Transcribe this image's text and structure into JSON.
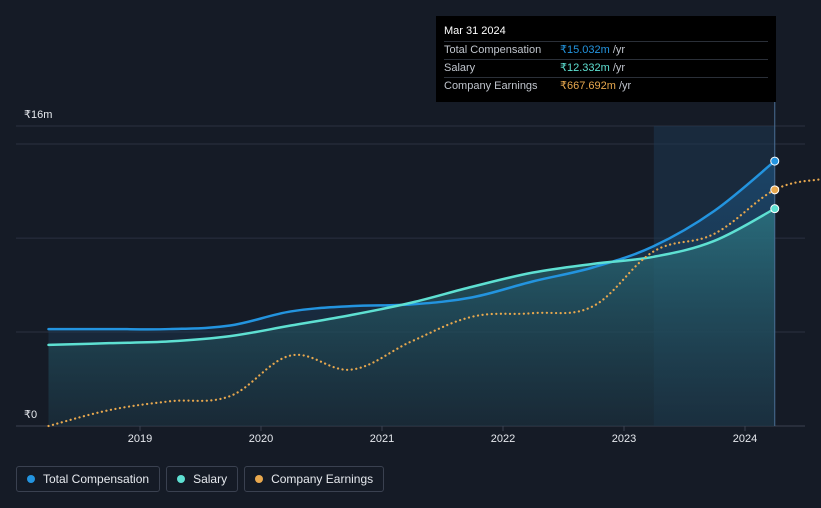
{
  "chart_data": {
    "type": "line",
    "currency_symbol": "₹",
    "x_ticks": [
      "2019",
      "2020",
      "2021",
      "2022",
      "2023",
      "2024"
    ],
    "y_ticks": [
      {
        "value": 0,
        "label": "₹0"
      },
      {
        "value": 16,
        "label": "₹16m"
      }
    ],
    "ylim": [
      0,
      16
    ],
    "grid": true,
    "legend_position": "bottom-left",
    "highlight_region": {
      "from": "2023-04-01",
      "to": "2024-03-31"
    },
    "series": [
      {
        "name": "Total Compensation",
        "color": "#2394df",
        "style": "solid",
        "filled": true,
        "points": [
          [
            "2018-03-31",
            5.5
          ],
          [
            "2018-09-30",
            5.5
          ],
          [
            "2019-03-31",
            5.5
          ],
          [
            "2019-09-30",
            5.7
          ],
          [
            "2020-03-31",
            6.5
          ],
          [
            "2020-09-30",
            6.8
          ],
          [
            "2021-03-31",
            6.9
          ],
          [
            "2021-09-30",
            7.3
          ],
          [
            "2022-03-31",
            8.2
          ],
          [
            "2022-09-30",
            9.0
          ],
          [
            "2023-03-31",
            10.2
          ],
          [
            "2023-09-30",
            12.2
          ],
          [
            "2024-03-31",
            15.03
          ]
        ]
      },
      {
        "name": "Salary",
        "color": "#5ee0d2",
        "style": "solid",
        "filled": true,
        "points": [
          [
            "2018-03-31",
            4.6
          ],
          [
            "2018-09-30",
            4.7
          ],
          [
            "2019-03-31",
            4.8
          ],
          [
            "2019-09-30",
            5.1
          ],
          [
            "2020-03-31",
            5.7
          ],
          [
            "2020-09-30",
            6.3
          ],
          [
            "2021-03-31",
            7.0
          ],
          [
            "2021-09-30",
            7.9
          ],
          [
            "2022-03-31",
            8.7
          ],
          [
            "2022-09-30",
            9.2
          ],
          [
            "2023-03-31",
            9.6
          ],
          [
            "2023-09-30",
            10.5
          ],
          [
            "2024-03-31",
            12.33
          ]
        ]
      },
      {
        "name": "Company Earnings",
        "color": "#e8a84e",
        "style": "dotted",
        "filled": false,
        "points": [
          [
            "2018-03-31",
            0.0
          ],
          [
            "2018-09-30",
            0.9
          ],
          [
            "2019-03-31",
            1.4
          ],
          [
            "2019-09-30",
            1.7
          ],
          [
            "2020-03-31",
            4.0
          ],
          [
            "2020-09-30",
            3.2
          ],
          [
            "2021-03-31",
            4.8
          ],
          [
            "2021-09-30",
            6.2
          ],
          [
            "2022-03-31",
            6.4
          ],
          [
            "2022-09-30",
            6.8
          ],
          [
            "2023-03-31",
            9.9
          ],
          [
            "2023-09-30",
            10.9
          ],
          [
            "2024-03-31",
            13.4
          ],
          [
            "2024-08-15",
            14.0
          ]
        ],
        "label_value": "₹667.692m"
      }
    ]
  },
  "tooltip": {
    "date": "Mar 31 2024",
    "rows": [
      {
        "name": "Total Compensation",
        "value": "₹15.032m",
        "unit": "/yr",
        "color": "#2394df"
      },
      {
        "name": "Salary",
        "value": "₹12.332m",
        "unit": "/yr",
        "color": "#5ee0d2"
      },
      {
        "name": "Company Earnings",
        "value": "₹667.692m",
        "unit": "/yr",
        "color": "#e8a84e"
      }
    ]
  },
  "legend": [
    {
      "label": "Total Compensation",
      "color": "#2394df"
    },
    {
      "label": "Salary",
      "color": "#5ee0d2"
    },
    {
      "label": "Company Earnings",
      "color": "#e8a84e"
    }
  ]
}
